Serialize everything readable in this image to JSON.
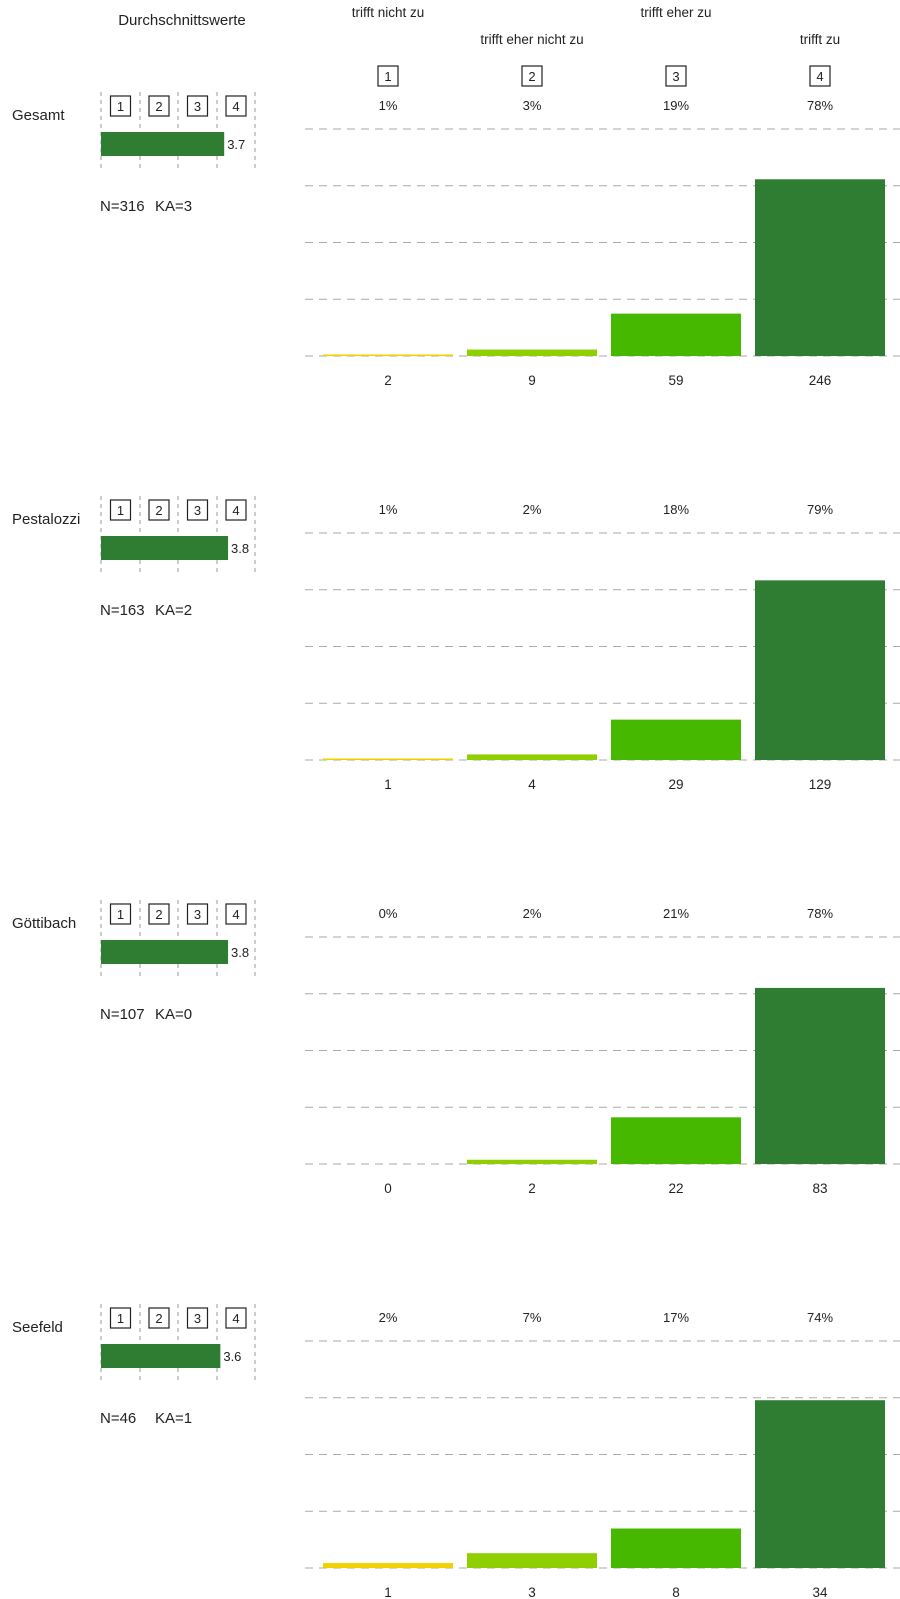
{
  "header": {
    "avg_title": "Durchschnittswerte",
    "categories": [
      "trifft nicht zu",
      "trifft eher nicht zu",
      "trifft eher zu",
      "trifft zu"
    ],
    "scale_labels": [
      "1",
      "2",
      "3",
      "4"
    ]
  },
  "colors": {
    "cat1": "#f2d100",
    "cat2": "#8fcf00",
    "cat3": "#47b800",
    "cat4": "#2e7d32",
    "mean_bar": "#2e7d32",
    "grid": "#aaaaaa"
  },
  "chart_data": [
    {
      "type": "bar",
      "group": "Gesamt",
      "categories": [
        "trifft nicht zu",
        "trifft eher nicht zu",
        "trifft eher zu",
        "trifft zu"
      ],
      "percent_labels": [
        "1%",
        "3%",
        "19%",
        "78%"
      ],
      "values": [
        2,
        9,
        59,
        246
      ],
      "mean": 3.7,
      "mean_label": "3.7",
      "mean_range": [
        0.5,
        4.5
      ],
      "n_label": "N=316",
      "ka_label": "KA=3",
      "grid": true
    },
    {
      "type": "bar",
      "group": "Pestalozzi",
      "categories": [
        "trifft nicht zu",
        "trifft eher nicht zu",
        "trifft eher zu",
        "trifft zu"
      ],
      "percent_labels": [
        "1%",
        "2%",
        "18%",
        "79%"
      ],
      "values": [
        1,
        4,
        29,
        129
      ],
      "mean": 3.8,
      "mean_label": "3.8",
      "mean_range": [
        0.5,
        4.5
      ],
      "n_label": "N=163",
      "ka_label": "KA=2",
      "grid": true
    },
    {
      "type": "bar",
      "group": "Göttibach",
      "categories": [
        "trifft nicht zu",
        "trifft eher nicht zu",
        "trifft eher zu",
        "trifft zu"
      ],
      "percent_labels": [
        "0%",
        "2%",
        "21%",
        "78%"
      ],
      "values": [
        0,
        2,
        22,
        83
      ],
      "mean": 3.8,
      "mean_label": "3.8",
      "mean_range": [
        0.5,
        4.5
      ],
      "n_label": "N=107",
      "ka_label": "KA=0",
      "grid": true
    },
    {
      "type": "bar",
      "group": "Seefeld",
      "categories": [
        "trifft nicht zu",
        "trifft eher nicht zu",
        "trifft eher zu",
        "trifft zu"
      ],
      "percent_labels": [
        "2%",
        "7%",
        "17%",
        "74%"
      ],
      "values": [
        1,
        3,
        8,
        34
      ],
      "mean": 3.6,
      "mean_label": "3.6",
      "mean_range": [
        0.5,
        4.5
      ],
      "n_label": "N=46",
      "ka_label": "KA=1",
      "grid": true
    }
  ]
}
